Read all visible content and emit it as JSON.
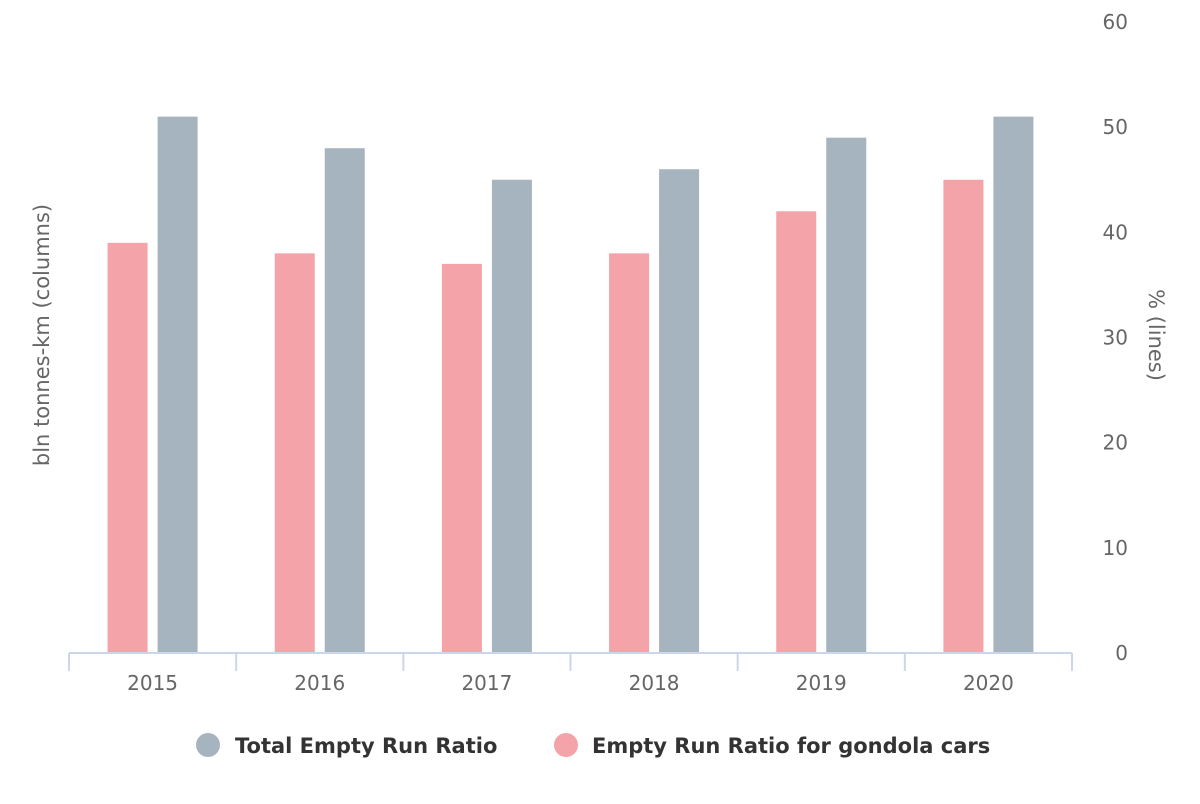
{
  "chart_data": {
    "type": "bar",
    "title": "",
    "categories": [
      "2015",
      "2016",
      "2017",
      "2018",
      "2019",
      "2020"
    ],
    "series": [
      {
        "name": "Empty Run Ratio for gondola cars",
        "color": "#F4A3A8",
        "values": [
          39,
          38,
          37,
          38,
          42,
          45
        ]
      },
      {
        "name": "Total Empty Run Ratio",
        "color": "#A5B4BF",
        "values": [
          51,
          48,
          45,
          46,
          49,
          51
        ]
      }
    ],
    "left_axis": {
      "label": "bln tonnes-km (columns)"
    },
    "right_axis": {
      "label": "% (lines)",
      "ticks": [
        0,
        10,
        20,
        30,
        40,
        50,
        60
      ],
      "range": [
        0,
        60
      ]
    },
    "legend": {
      "placement": "bottom-center",
      "items": [
        {
          "label": "Total Empty Run Ratio",
          "color": "#A5B4BF"
        },
        {
          "label": "Empty Run Ratio for gondola cars",
          "color": "#F4A3A8"
        }
      ]
    },
    "grid": false,
    "axis_color": "#CCD6EB"
  }
}
